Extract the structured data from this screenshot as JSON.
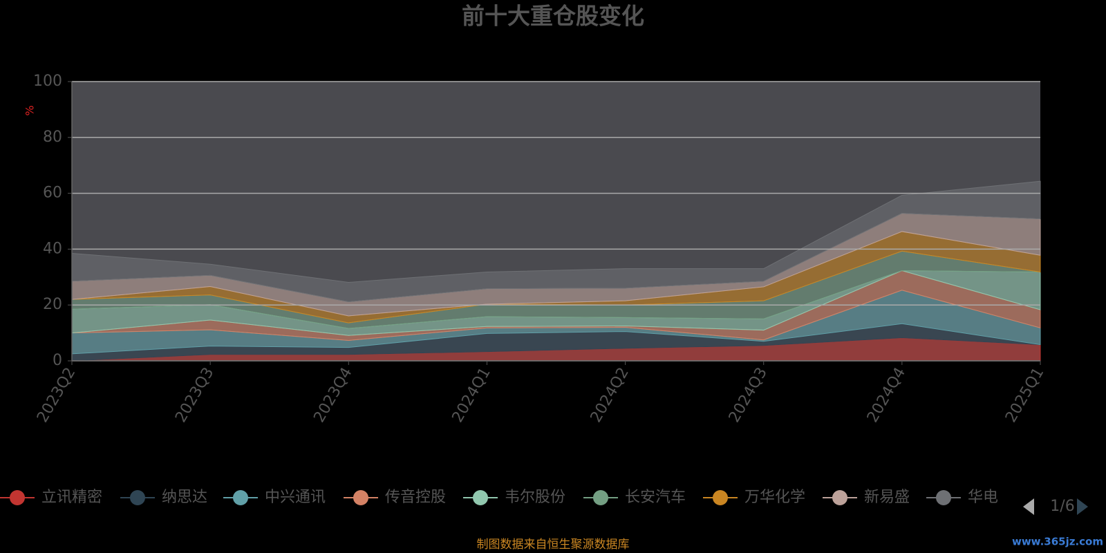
{
  "chart_data": {
    "type": "area",
    "stacked": true,
    "title": "前十大重仓股变化",
    "y_label": "%",
    "categories": [
      "2023Q2",
      "2023Q3",
      "2023Q4",
      "2024Q1",
      "2024Q2",
      "2024Q3",
      "2024Q4",
      "2025Q1"
    ],
    "series": [
      {
        "name": "立讯精密",
        "color": "#c23531",
        "values": [
          0,
          2.3,
          2.3,
          3.3,
          4.5,
          5.5,
          8.3,
          5.8
        ]
      },
      {
        "name": "纳思达",
        "color": "#2f4554",
        "values": [
          2.5,
          3.0,
          2.5,
          6.5,
          6.0,
          1.5,
          5.0,
          0
        ]
      },
      {
        "name": "中兴通讯",
        "color": "#61a0a8",
        "values": [
          7.5,
          5.8,
          2.5,
          2.0,
          1.5,
          0.5,
          12.0,
          6.0
        ]
      },
      {
        "name": "传音控股",
        "color": "#d48265",
        "values": [
          0,
          3.5,
          1.8,
          0.5,
          0.5,
          3.5,
          7.0,
          6.5
        ]
      },
      {
        "name": "韦尔股份",
        "color": "#91c7ae",
        "values": [
          8.5,
          5.5,
          2.5,
          3.5,
          3.0,
          4.0,
          0,
          13.5
        ]
      },
      {
        "name": "长安汽车",
        "color": "#749f83",
        "values": [
          3.5,
          3.5,
          2.0,
          4.5,
          4.5,
          6.5,
          7.0,
          0
        ]
      },
      {
        "name": "万华化学",
        "color": "#ca8622",
        "values": [
          0,
          3.0,
          2.5,
          0,
          1.5,
          5.0,
          7.0,
          6.0
        ]
      },
      {
        "name": "新易盛",
        "color": "#bda29a",
        "values": [
          6.5,
          4.0,
          5.0,
          5.5,
          4.5,
          2.0,
          6.5,
          13.0
        ]
      },
      {
        "name": "华电",
        "color": "#6e7074",
        "values": [
          10,
          4,
          7,
          6,
          7,
          4.5,
          6.5,
          13.5
        ]
      }
    ],
    "ylim": [
      0,
      100
    ],
    "yticks": [
      0,
      20,
      40,
      60,
      80,
      100
    ],
    "grid": true,
    "legend_page": "1/6",
    "source": "制图数据来自恒生聚源数据库",
    "watermark": "www.365jz.com"
  }
}
